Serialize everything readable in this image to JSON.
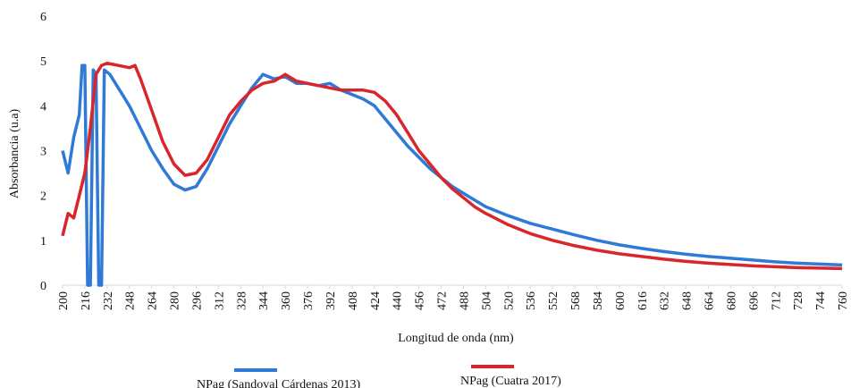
{
  "chart_data": {
    "type": "line",
    "x_label": "Longitud de onda (nm)",
    "y_label": "Absorbancia (u.a)",
    "xlim": [
      200,
      760
    ],
    "xticks": [
      200,
      216,
      232,
      248,
      264,
      280,
      296,
      312,
      328,
      344,
      360,
      376,
      392,
      408,
      424,
      440,
      456,
      472,
      488,
      504,
      520,
      536,
      552,
      568,
      584,
      600,
      616,
      632,
      648,
      664,
      680,
      696,
      712,
      728,
      744,
      760
    ],
    "ylim": [
      0,
      6
    ],
    "yticks": [
      0,
      1,
      2,
      3,
      4,
      5,
      6
    ],
    "legend": "bottom",
    "series": [
      {
        "name": "NPag (Sandoval Cárdenas 2013)",
        "color": "#2f7ad6",
        "x": [
          200,
          204,
          208,
          212,
          214,
          216,
          218,
          220,
          222,
          224,
          226,
          228,
          230,
          234,
          240,
          248,
          256,
          264,
          272,
          280,
          288,
          296,
          304,
          312,
          320,
          328,
          336,
          344,
          352,
          360,
          368,
          376,
          384,
          392,
          400,
          408,
          416,
          424,
          432,
          440,
          448,
          456,
          464,
          472,
          480,
          488,
          496,
          504,
          520,
          536,
          552,
          568,
          584,
          600,
          616,
          632,
          648,
          664,
          680,
          696,
          712,
          728,
          744,
          760
        ],
        "values": [
          3.0,
          2.5,
          3.3,
          3.8,
          4.9,
          4.9,
          0,
          0,
          4.8,
          4.7,
          0,
          0,
          4.8,
          4.7,
          4.4,
          4.0,
          3.5,
          3.0,
          2.6,
          2.25,
          2.12,
          2.2,
          2.6,
          3.1,
          3.6,
          4.0,
          4.4,
          4.7,
          4.6,
          4.65,
          4.5,
          4.5,
          4.45,
          4.5,
          4.35,
          4.25,
          4.15,
          4.0,
          3.7,
          3.4,
          3.1,
          2.85,
          2.6,
          2.4,
          2.2,
          2.05,
          1.9,
          1.75,
          1.55,
          1.38,
          1.25,
          1.12,
          1.0,
          0.9,
          0.82,
          0.75,
          0.69,
          0.64,
          0.6,
          0.56,
          0.52,
          0.49,
          0.47,
          0.45
        ]
      },
      {
        "name": "NPag (Cuatra 2017)",
        "color": "#d8262c",
        "x": [
          200,
          204,
          208,
          212,
          216,
          220,
          224,
          228,
          232,
          240,
          248,
          252,
          256,
          264,
          272,
          280,
          288,
          296,
          304,
          312,
          320,
          328,
          336,
          344,
          352,
          360,
          368,
          376,
          384,
          392,
          400,
          408,
          416,
          424,
          432,
          440,
          448,
          456,
          464,
          472,
          480,
          488,
          496,
          504,
          520,
          536,
          552,
          568,
          584,
          600,
          616,
          632,
          648,
          664,
          680,
          696,
          712,
          728,
          744,
          760
        ],
        "values": [
          1.1,
          1.6,
          1.5,
          2.0,
          2.5,
          3.5,
          4.7,
          4.9,
          4.95,
          4.9,
          4.85,
          4.9,
          4.6,
          3.9,
          3.2,
          2.7,
          2.45,
          2.5,
          2.8,
          3.3,
          3.8,
          4.1,
          4.35,
          4.5,
          4.55,
          4.7,
          4.55,
          4.5,
          4.45,
          4.4,
          4.35,
          4.35,
          4.35,
          4.3,
          4.1,
          3.8,
          3.4,
          3.0,
          2.7,
          2.4,
          2.15,
          1.95,
          1.75,
          1.6,
          1.35,
          1.15,
          1.0,
          0.88,
          0.78,
          0.7,
          0.64,
          0.58,
          0.53,
          0.49,
          0.46,
          0.43,
          0.41,
          0.39,
          0.38,
          0.37
        ]
      }
    ]
  }
}
